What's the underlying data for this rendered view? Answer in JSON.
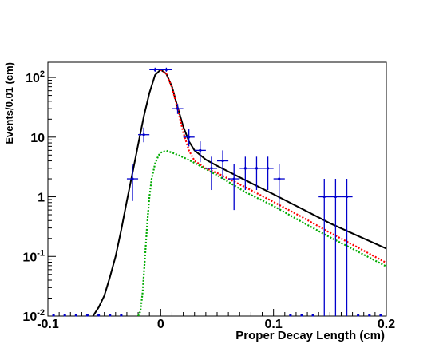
{
  "chart_data": {
    "type": "scatter",
    "title": "",
    "xlabel": "Proper Decay Length (cm)",
    "ylabel": "Events/0.01 (cm)",
    "xlim": [
      -0.1,
      0.2
    ],
    "ylim": [
      0.01,
      180
    ],
    "yscale": "log",
    "grid": false,
    "x_ticks": [
      {
        "value": -0.1,
        "label": "-0.1"
      },
      {
        "value": 0,
        "label": "0"
      },
      {
        "value": 0.1,
        "label": "0.1"
      },
      {
        "value": 0.2,
        "label": "0.2"
      }
    ],
    "y_ticks": [
      {
        "value": 0.01,
        "base": "10",
        "exp": "-2"
      },
      {
        "value": 0.1,
        "base": "10",
        "exp": "-1"
      },
      {
        "value": 1,
        "base": "1",
        "exp": ""
      },
      {
        "value": 10,
        "base": "10",
        "exp": ""
      },
      {
        "value": 100,
        "base": "10",
        "exp": "2"
      }
    ],
    "data_points": {
      "color": "#0000cc",
      "x_halfwidth": 0.005,
      "points": [
        {
          "x": -0.025,
          "y": 2,
          "ylo": 0.85,
          "yhi": 3.5
        },
        {
          "x": -0.015,
          "y": 11,
          "ylo": 8.2,
          "yhi": 14.5
        },
        {
          "x": -0.005,
          "y": 135,
          "ylo": 125,
          "yhi": 146
        },
        {
          "x": 0.005,
          "y": 135,
          "ylo": 125,
          "yhi": 146
        },
        {
          "x": 0.015,
          "y": 30,
          "ylo": 24.5,
          "yhi": 36
        },
        {
          "x": 0.025,
          "y": 10,
          "ylo": 7,
          "yhi": 13.5
        },
        {
          "x": 0.035,
          "y": 6,
          "ylo": 3.8,
          "yhi": 8.5
        },
        {
          "x": 0.045,
          "y": 3,
          "ylo": 1.3,
          "yhi": 4.7
        },
        {
          "x": 0.055,
          "y": 4,
          "ylo": 2.0,
          "yhi": 6.0
        },
        {
          "x": 0.065,
          "y": 2,
          "ylo": 0.6,
          "yhi": 3.5
        },
        {
          "x": 0.075,
          "y": 3,
          "ylo": 1.3,
          "yhi": 4.7
        },
        {
          "x": 0.085,
          "y": 3,
          "ylo": 1.3,
          "yhi": 4.7
        },
        {
          "x": 0.095,
          "y": 3,
          "ylo": 1.3,
          "yhi": 4.7
        },
        {
          "x": 0.105,
          "y": 2,
          "ylo": 0.6,
          "yhi": 3.5
        },
        {
          "x": 0.145,
          "y": 1,
          "ylo": 0.01,
          "yhi": 2
        },
        {
          "x": 0.155,
          "y": 1,
          "ylo": 0.01,
          "yhi": 2
        },
        {
          "x": 0.165,
          "y": 1,
          "ylo": 0.01,
          "yhi": 2
        }
      ],
      "zero_bins_x": [
        -0.095,
        -0.085,
        -0.075,
        -0.065,
        -0.055,
        -0.045,
        -0.035,
        0.115,
        0.125,
        0.135,
        0.175,
        0.185,
        0.195
      ]
    },
    "series": [
      {
        "color": "#000000",
        "style": "solid",
        "x": [
          -0.06,
          -0.055,
          -0.05,
          -0.045,
          -0.04,
          -0.035,
          -0.03,
          -0.025,
          -0.02,
          -0.015,
          -0.01,
          -0.005,
          0,
          0.005,
          0.01,
          0.015,
          0.02,
          0.025,
          0.03,
          0.04,
          0.05,
          0.075,
          0.1,
          0.125,
          0.15,
          0.175,
          0.2
        ],
        "y": [
          0.01,
          0.014,
          0.022,
          0.045,
          0.1,
          0.28,
          0.85,
          2.5,
          7.5,
          22,
          55,
          110,
          135,
          115,
          70,
          32,
          15,
          8.5,
          6,
          4.2,
          3.3,
          1.9,
          1.1,
          0.63,
          0.36,
          0.22,
          0.135
        ]
      },
      {
        "color": "#ff0000",
        "style": "dotted",
        "x": [
          0,
          0.005,
          0.01,
          0.015,
          0.02,
          0.025,
          0.03,
          0.04,
          0.05,
          0.075,
          0.1,
          0.125,
          0.15,
          0.175,
          0.2
        ],
        "y": [
          135,
          115,
          68,
          30,
          12,
          6,
          4,
          3.0,
          2.5,
          1.45,
          0.82,
          0.46,
          0.25,
          0.14,
          0.078
        ]
      },
      {
        "color": "#00aa00",
        "style": "dotted",
        "x": [
          -0.02,
          -0.018,
          -0.016,
          -0.014,
          -0.012,
          -0.01,
          -0.008,
          -0.005,
          -0.002,
          0,
          0.005,
          0.01,
          0.02,
          0.03,
          0.05,
          0.075,
          0.1,
          0.125,
          0.15,
          0.175,
          0.2
        ],
        "y": [
          0.01,
          0.012,
          0.025,
          0.09,
          0.35,
          1.0,
          2.0,
          3.6,
          4.9,
          5.5,
          5.9,
          5.5,
          4.6,
          3.7,
          2.3,
          1.2,
          0.7,
          0.38,
          0.21,
          0.12,
          0.068
        ]
      }
    ]
  }
}
